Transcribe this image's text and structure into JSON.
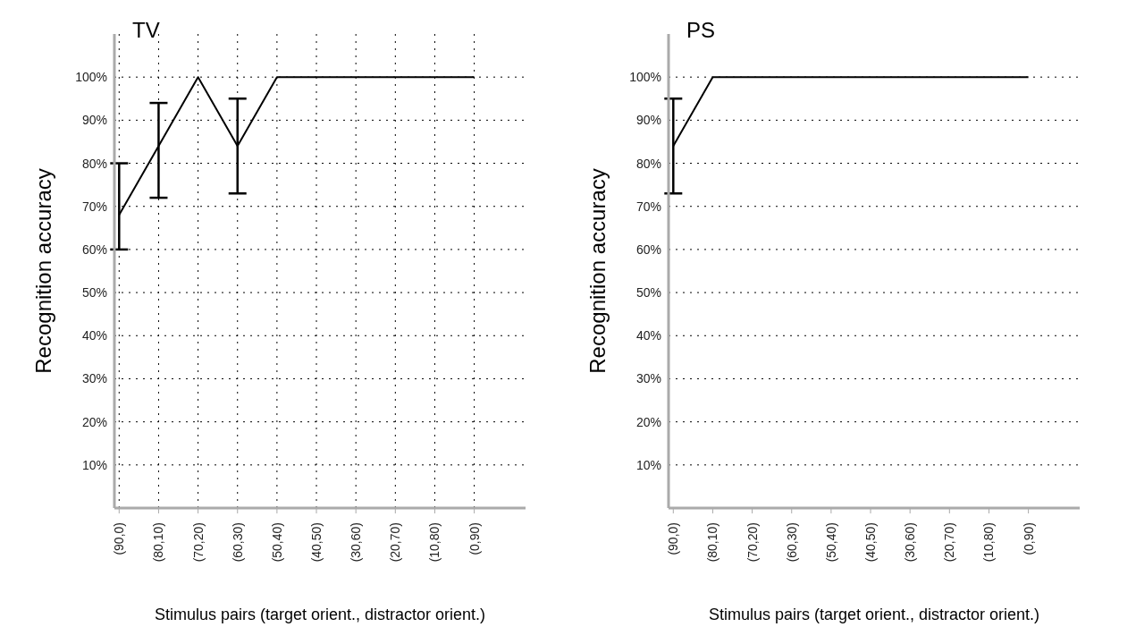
{
  "chart_data": [
    {
      "type": "line",
      "title": "TV",
      "xlabel": "Stimulus pairs (target orient., distractor orient.)",
      "ylabel": "Recognition accuracy",
      "categories": [
        "(90,0)",
        "(80,10)",
        "(70,20)",
        "(60,30)",
        "(50,40)",
        "(40,50)",
        "(30,60)",
        "(20,70)",
        "(10,80)",
        "(0,90)"
      ],
      "series": [
        {
          "color": "#000000",
          "values": [
            68,
            84,
            100,
            84,
            100,
            100,
            100,
            100,
            100,
            100
          ],
          "errors": [
            [
              60,
              80
            ],
            [
              72,
              94
            ],
            null,
            [
              73,
              95
            ],
            null,
            null,
            null,
            null,
            null,
            null
          ]
        }
      ],
      "ylim": [
        0,
        110
      ],
      "yticks": [
        {
          "value": 10,
          "label": "10%"
        },
        {
          "value": 20,
          "label": "20%"
        },
        {
          "value": 30,
          "label": "30%"
        },
        {
          "value": 40,
          "label": "40%"
        },
        {
          "value": 50,
          "label": "50%"
        },
        {
          "value": 60,
          "label": "60%"
        },
        {
          "value": 70,
          "label": "70%"
        },
        {
          "value": 80,
          "label": "80%"
        },
        {
          "value": 90,
          "label": "90%"
        },
        {
          "value": 100,
          "label": "100%"
        }
      ],
      "grid": true,
      "marker": "none",
      "line_style": "solid",
      "legend": false
    },
    {
      "type": "line",
      "title": "PS",
      "xlabel": "Stimulus pairs (target orient., distractor orient.)",
      "ylabel": "Recognition accuracy",
      "categories": [
        "(90,0)",
        "(80,10)",
        "(70,20)",
        "(60,30)",
        "(50,40)",
        "(40,50)",
        "(30,60)",
        "(20,70)",
        "(10,80)",
        "(0,90)"
      ],
      "series": [
        {
          "color": "#000000",
          "values": [
            84,
            100,
            100,
            100,
            100,
            100,
            100,
            100,
            100,
            100
          ],
          "errors": [
            [
              73,
              95
            ],
            null,
            null,
            null,
            null,
            null,
            null,
            null,
            null,
            null
          ]
        }
      ],
      "ylim": [
        0,
        110
      ],
      "yticks": [
        {
          "value": 10,
          "label": "10%"
        },
        {
          "value": 20,
          "label": "20%"
        },
        {
          "value": 30,
          "label": "30%"
        },
        {
          "value": 40,
          "label": "40%"
        },
        {
          "value": 50,
          "label": "50%"
        },
        {
          "value": 60,
          "label": "60%"
        },
        {
          "value": 70,
          "label": "70%"
        },
        {
          "value": 80,
          "label": "80%"
        },
        {
          "value": 90,
          "label": "90%"
        },
        {
          "value": 100,
          "label": "100%"
        }
      ],
      "grid": "y",
      "marker": "none",
      "line_style": "solid",
      "legend": false
    }
  ]
}
